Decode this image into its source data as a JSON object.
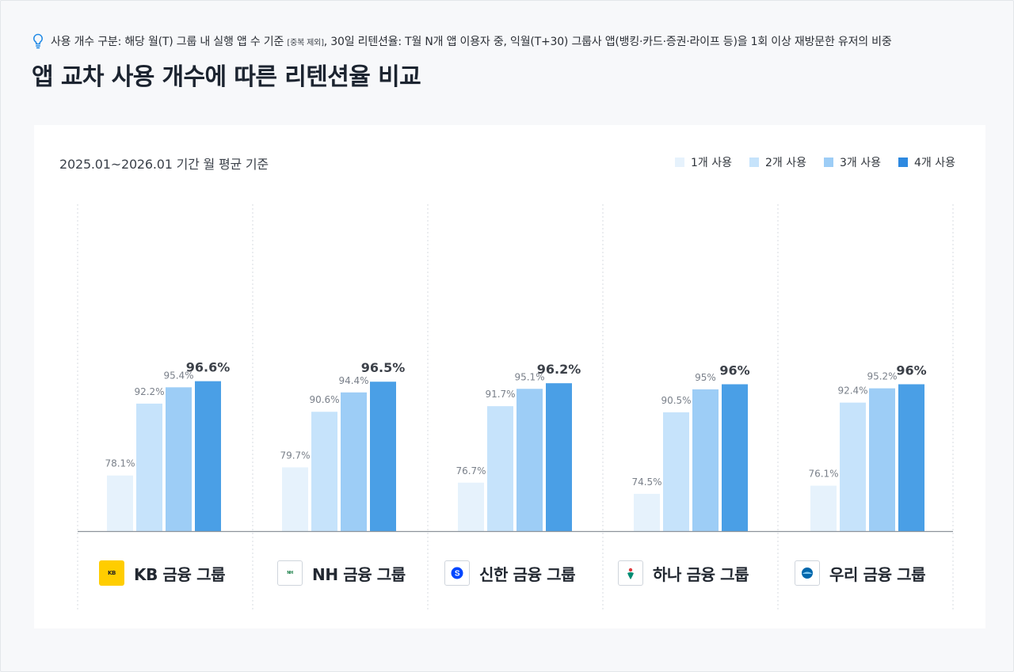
{
  "note": {
    "icon": "lightbulb-icon",
    "text_main": "사용 개수 구분: 해당 월(T) 그룹 내 실행 앱 수 기준",
    "text_small": "[중복 제외]",
    "text_rest": ", 30일 리텐션율: T월 N개 앱 이용자 중, 익월(T+30) 그룹사 앱(뱅킹·카드·증권·라이프 등)을 1회 이상 재방문한 유저의 비중"
  },
  "title": "앱 교차 사용 개수에 따른 리텐션율 비교",
  "period": "2025.01~2026.01 기간 월 평균 기준",
  "colors": {
    "s1": "#e6f2fc",
    "s2": "#c6e3fb",
    "s3": "#9dcdf6",
    "s4": "#4a9fe6",
    "legend4": "#2e89e0",
    "baseline": "#8d939b",
    "gridline": "#d7dbe0"
  },
  "chart_data": {
    "type": "bar",
    "categories": [
      "KB 금융 그룹",
      "NH 금융 그룹",
      "신한 금융 그룹",
      "하나 금융 그룹",
      "우리 금융 그룹"
    ],
    "series": [
      {
        "name": "1개 사용",
        "values": [
          78.1,
          79.7,
          76.7,
          74.5,
          76.1
        ]
      },
      {
        "name": "2개 사용",
        "values": [
          92.2,
          90.6,
          91.7,
          90.5,
          92.4
        ]
      },
      {
        "name": "3개 사용",
        "values": [
          95.4,
          94.4,
          95.1,
          95,
          95.2
        ]
      },
      {
        "name": "4개 사용",
        "values": [
          96.6,
          96.5,
          96.2,
          96,
          96
        ]
      }
    ],
    "data_labels": [
      [
        "78.1%",
        "79.7%",
        "76.7%",
        "74.5%",
        "76.1%"
      ],
      [
        "92.2%",
        "90.6%",
        "91.7%",
        "90.5%",
        "92.4%"
      ],
      [
        "95.4%",
        "94.4%",
        "95.1%",
        "95%",
        "95.2%"
      ],
      [
        "96.6%",
        "96.5%",
        "96.2%",
        "96%",
        "96%"
      ]
    ],
    "legend_position": "top-right",
    "grid": "vertical dotted separators"
  },
  "groups": [
    {
      "label": "KB 금융 그룹",
      "logo_text": "KB금융그룹",
      "logo_icon": "kb-logo-icon"
    },
    {
      "label": "NH 금융 그룹",
      "logo_text": "NH농협금융",
      "logo_icon": "nh-logo-icon"
    },
    {
      "label": "신한 금융 그룹",
      "logo_text": "신한금융그룹",
      "logo_icon": "shinhan-logo-icon"
    },
    {
      "label": "하나 금융 그룹",
      "logo_text": "하나금융그룹",
      "logo_icon": "hana-logo-icon"
    },
    {
      "label": "우리 금융 그룹",
      "logo_text": "우리금융그룹",
      "logo_icon": "woori-logo-icon"
    }
  ]
}
